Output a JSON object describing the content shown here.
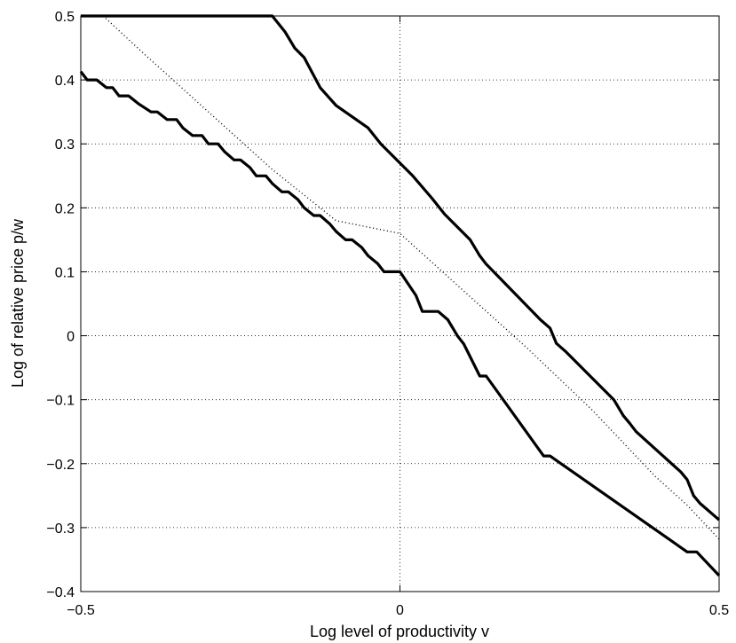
{
  "chart_data": {
    "type": "line",
    "title": "",
    "xlabel": "Log level of productivity v",
    "ylabel": "Log of relative price p/w",
    "xlim": [
      -0.5,
      0.5
    ],
    "ylim": [
      -0.4,
      0.5
    ],
    "x_ticks": [
      -0.5,
      0,
      0.5
    ],
    "x_tick_labels": [
      "−0.5",
      "0",
      "0.5"
    ],
    "y_ticks": [
      -0.4,
      -0.3,
      -0.2,
      -0.1,
      0,
      0.1,
      0.2,
      0.3,
      0.4,
      0.5
    ],
    "y_tick_labels": [
      "−0.4",
      "−0.3",
      "−0.2",
      "−0.1",
      "0",
      "0.1",
      "0.2",
      "0.3",
      "0.4",
      "0.5"
    ],
    "grid": true,
    "legend": "none",
    "series": [
      {
        "style": "solid",
        "color": "#000000",
        "x": [
          -0.5,
          -0.49,
          -0.475,
          -0.46,
          -0.45,
          -0.44,
          -0.425,
          -0.41,
          -0.39,
          -0.38,
          -0.365,
          -0.35,
          -0.34,
          -0.325,
          -0.31,
          -0.3,
          -0.285,
          -0.275,
          -0.26,
          -0.25,
          -0.235,
          -0.225,
          -0.21,
          -0.2,
          -0.185,
          -0.175,
          -0.16,
          -0.15,
          -0.135,
          -0.125,
          -0.11,
          -0.1,
          -0.085,
          -0.075,
          -0.06,
          -0.05,
          -0.035,
          -0.025,
          0,
          0.025,
          0.035,
          0.06,
          0.075,
          0.09,
          0.1,
          0.125,
          0.135,
          0.225,
          0.235,
          0.45,
          0.465,
          0.5
        ],
        "y": [
          0.413,
          0.4,
          0.4,
          0.388,
          0.388,
          0.375,
          0.375,
          0.363,
          0.35,
          0.35,
          0.338,
          0.338,
          0.325,
          0.313,
          0.313,
          0.3,
          0.3,
          0.288,
          0.275,
          0.275,
          0.263,
          0.25,
          0.25,
          0.238,
          0.225,
          0.225,
          0.213,
          0.2,
          0.188,
          0.188,
          0.175,
          0.163,
          0.15,
          0.15,
          0.138,
          0.125,
          0.113,
          0.1,
          0.1,
          0.063,
          0.038,
          0.038,
          0.025,
          0.0,
          -0.013,
          -0.063,
          -0.063,
          -0.188,
          -0.188,
          -0.338,
          -0.338,
          -0.375
        ]
      },
      {
        "style": "solid",
        "color": "#000000",
        "x": [
          -0.5,
          -0.2,
          -0.18,
          -0.165,
          -0.15,
          -0.125,
          -0.1,
          -0.05,
          -0.03,
          0.02,
          0.05,
          0.07,
          0.11,
          0.125,
          0.135,
          0.22,
          0.235,
          0.245,
          0.26,
          0.335,
          0.35,
          0.36,
          0.37,
          0.44,
          0.45,
          0.46,
          0.47,
          0.5
        ],
        "y": [
          0.5,
          0.5,
          0.475,
          0.45,
          0.435,
          0.388,
          0.36,
          0.325,
          0.3,
          0.25,
          0.215,
          0.19,
          0.15,
          0.125,
          0.112,
          0.025,
          0.012,
          -0.012,
          -0.025,
          -0.1,
          -0.125,
          -0.137,
          -0.15,
          -0.213,
          -0.225,
          -0.25,
          -0.262,
          -0.288
        ]
      },
      {
        "style": "dotted",
        "color": "#000000",
        "x": [
          -0.465,
          -0.4,
          -0.3,
          -0.2,
          -0.1,
          0,
          0.1,
          0.2,
          0.3,
          0.4,
          0.45,
          0.5
        ],
        "y": [
          0.5,
          0.44,
          0.35,
          0.26,
          0.18,
          0.16,
          0.07,
          -0.02,
          -0.115,
          -0.22,
          -0.265,
          -0.318
        ]
      }
    ]
  }
}
